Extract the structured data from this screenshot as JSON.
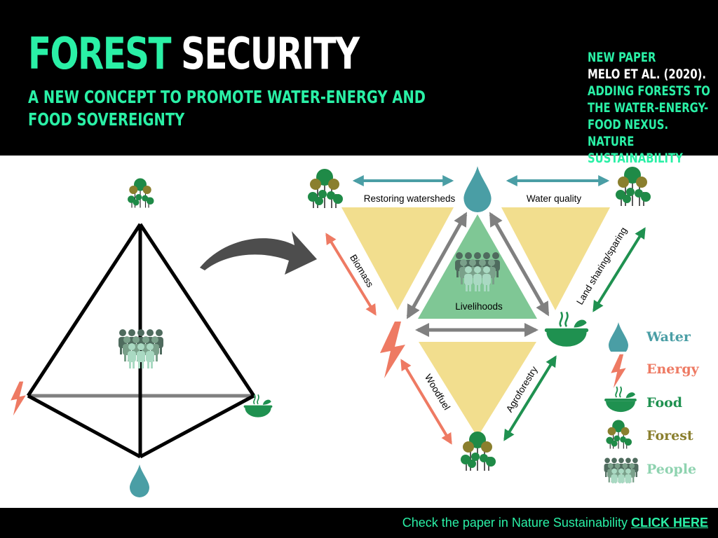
{
  "header": {
    "title_part1": "FOREST",
    "title_part2": "SECURITY",
    "subtitle": "A NEW CONCEPT TO PROMOTE WATER-ENERGY AND FOOD SOVEREIGNTY",
    "paper_line1": "NEW PAPER",
    "paper_line2": "MELO ET AL. (2020).",
    "paper_line3": "ADDING FORESTS TO THE WATER-ENERGY- FOOD NEXUS. NATURE SUSTAINABILITY"
  },
  "diagram": {
    "edge_top_left": "Restoring watersheds",
    "edge_top_right": "Water quality",
    "edge_left": "Biomass",
    "edge_right": "Land sharing/sparing",
    "edge_bottom_left": "Woodfuel",
    "edge_bottom_right": "Agroforestry",
    "center": "Livelihoods"
  },
  "legend": [
    {
      "label": "Water",
      "icon": "water-drop-icon",
      "color": "#4a9ea5"
    },
    {
      "label": "Energy",
      "icon": "lightning-icon",
      "color": "#ee7a63"
    },
    {
      "label": "Food",
      "icon": "food-bowl-icon",
      "color": "#1f9150"
    },
    {
      "label": "Forest",
      "icon": "forest-icon",
      "color": "#8a7f2e"
    },
    {
      "label": "People",
      "icon": "people-icon",
      "color": "#8fd3b0"
    }
  ],
  "footer": {
    "text": "Check the paper in Nature Sustainability",
    "link": "CLICK HERE"
  },
  "colors": {
    "accent": "#2af0a6",
    "water": "#4a9ea5",
    "energy": "#ee7a63",
    "food": "#1f9150",
    "triangle": "#f2de8e",
    "center_triangle": "#7fc795",
    "arrow_gray": "#808080"
  }
}
